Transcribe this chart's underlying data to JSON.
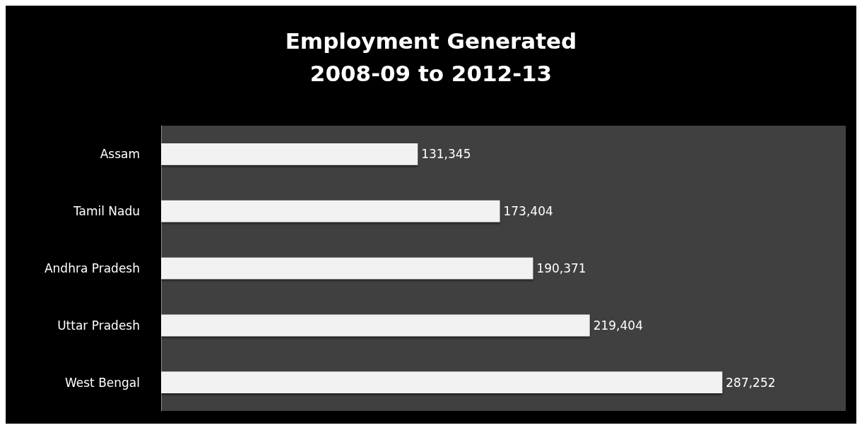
{
  "chart_data": {
    "type": "bar",
    "orientation": "horizontal",
    "title": "Employment Generated\n2008-09 to 2012-13",
    "categories": [
      "Assam",
      "Tamil Nadu",
      "Andhra Pradesh",
      "Uttar Pradesh",
      "West Bengal"
    ],
    "values": [
      131345,
      173404,
      190371,
      219404,
      287252
    ],
    "value_labels": [
      "131,345",
      "173,404",
      "190,371",
      "219,404",
      "287,252"
    ],
    "color": "#f2f2f2",
    "tick_labels": "y"
  }
}
